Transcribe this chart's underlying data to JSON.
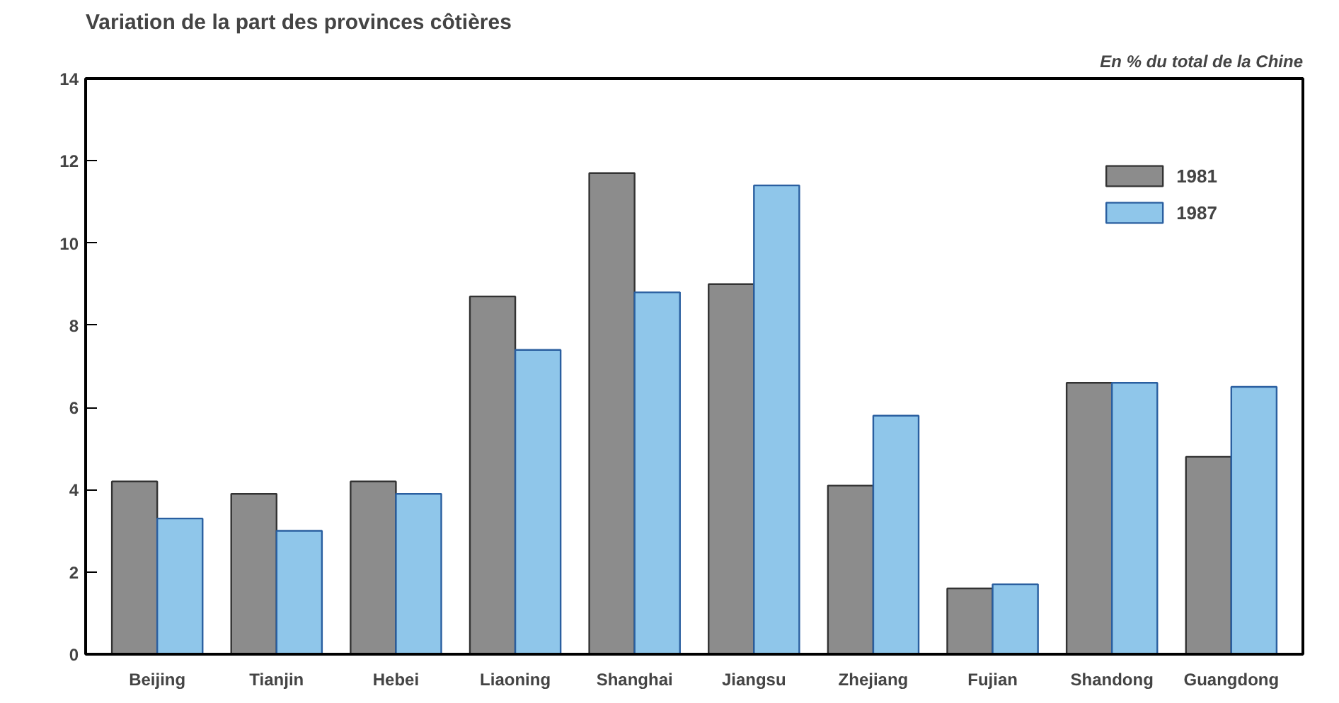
{
  "chart_data": {
    "type": "bar",
    "title": "Variation de la part des provinces côtières",
    "subtitle": "En % du total de la Chine",
    "categories": [
      "Beijing",
      "Tianjin",
      "Hebei",
      "Liaoning",
      "Shanghai",
      "Jiangsu",
      "Zhejiang",
      "Fujian",
      "Shandong",
      "Guangdong"
    ],
    "series": [
      {
        "name": "1981",
        "color": "#8c8c8c",
        "values": [
          4.2,
          3.9,
          4.2,
          8.7,
          11.7,
          9.0,
          4.1,
          1.6,
          6.6,
          4.8
        ]
      },
      {
        "name": "1987",
        "color": "#8fc6ea",
        "values": [
          3.3,
          3.0,
          3.9,
          7.4,
          8.8,
          11.4,
          5.8,
          1.7,
          6.6,
          6.5
        ]
      }
    ],
    "ylim": [
      0,
      14
    ],
    "yticks": [
      0,
      2,
      4,
      6,
      8,
      10,
      12,
      14
    ],
    "grid": false,
    "legend": "top right"
  }
}
